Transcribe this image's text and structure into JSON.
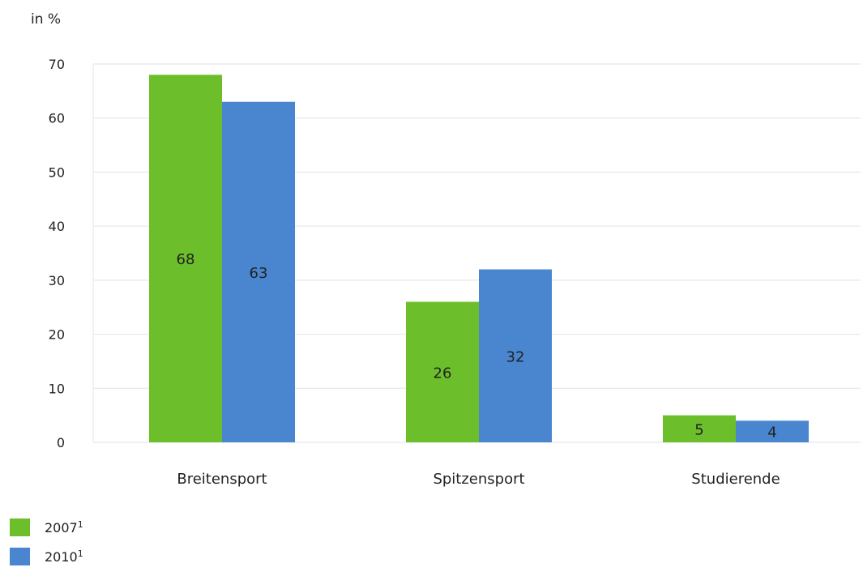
{
  "unit_label": "in %",
  "legend": [
    {
      "label": "2007",
      "superscript": "1",
      "color": "#6cbf2a"
    },
    {
      "label": "2010",
      "superscript": "1",
      "color": "#4a86d0"
    }
  ],
  "chart_data": {
    "type": "bar",
    "title": "",
    "xlabel": "",
    "ylabel": "in %",
    "ylim": [
      0,
      70
    ],
    "yticks": [
      0,
      10,
      20,
      30,
      40,
      50,
      60,
      70
    ],
    "grid": true,
    "legend_position": "bottom-left",
    "categories": [
      "Breitensport",
      "Spitzensport",
      "Studierende"
    ],
    "series": [
      {
        "name": "2007¹",
        "values": [
          68,
          26,
          5
        ],
        "color": "#6cbf2a"
      },
      {
        "name": "2010¹",
        "values": [
          63,
          32,
          4
        ],
        "color": "#4a86d0"
      }
    ]
  }
}
